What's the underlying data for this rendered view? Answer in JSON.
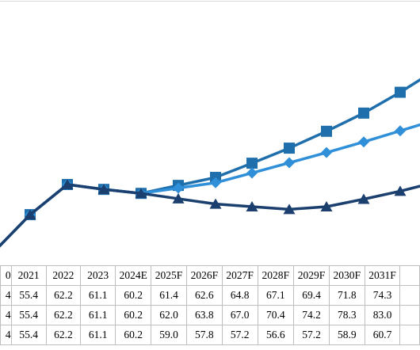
{
  "chart_data": {
    "type": "line",
    "categories": [
      "0",
      "2021",
      "2022",
      "2023",
      "2024E",
      "2025F",
      "2026F",
      "2027F",
      "2028F",
      "2029F",
      "2030F",
      "2031F"
    ],
    "series": [
      {
        "label_cell": "4",
        "values": [
          null,
          55.4,
          62.2,
          61.1,
          60.2,
          61.4,
          62.6,
          64.8,
          67.1,
          69.4,
          71.8,
          74.3
        ],
        "marker": "diamond",
        "color": "#2f8fd8"
      },
      {
        "label_cell": "4",
        "values": [
          null,
          55.4,
          62.2,
          61.1,
          60.2,
          62.0,
          63.8,
          67.0,
          70.4,
          74.2,
          78.3,
          83.0
        ],
        "marker": "square",
        "color": "#1f6fad"
      },
      {
        "label_cell": "4",
        "values": [
          null,
          55.4,
          62.2,
          61.1,
          60.2,
          59.0,
          57.8,
          57.2,
          56.6,
          57.2,
          58.9,
          60.7
        ],
        "marker": "triangle",
        "color": "#1b3f6e"
      }
    ],
    "extra_points": {
      "start_value_partial": 47.5,
      "end_values_partial": [
        76.5,
        87.5,
        62.5
      ]
    },
    "grid": false,
    "legend": "none"
  },
  "colors": {
    "diamond_series": "#2f8fd8",
    "square_series": "#1f6fad",
    "triangle_series": "#1b3f6e",
    "table_border": "#bfbfbf"
  },
  "table": {
    "header": [
      "0",
      "2021",
      "2022",
      "2023",
      "2024E",
      "2025F",
      "2026F",
      "2027F",
      "2028F",
      "2029F",
      "2030F",
      "2031F"
    ],
    "rows": [
      [
        "4",
        "55.4",
        "62.2",
        "61.1",
        "60.2",
        "61.4",
        "62.6",
        "64.8",
        "67.1",
        "69.4",
        "71.8",
        "74.3"
      ],
      [
        "4",
        "55.4",
        "62.2",
        "61.1",
        "60.2",
        "62.0",
        "63.8",
        "67.0",
        "70.4",
        "74.2",
        "78.3",
        "83.0"
      ],
      [
        "4",
        "55.4",
        "62.2",
        "61.1",
        "60.2",
        "59.0",
        "57.8",
        "57.2",
        "56.6",
        "57.2",
        "58.9",
        "60.7"
      ]
    ]
  }
}
